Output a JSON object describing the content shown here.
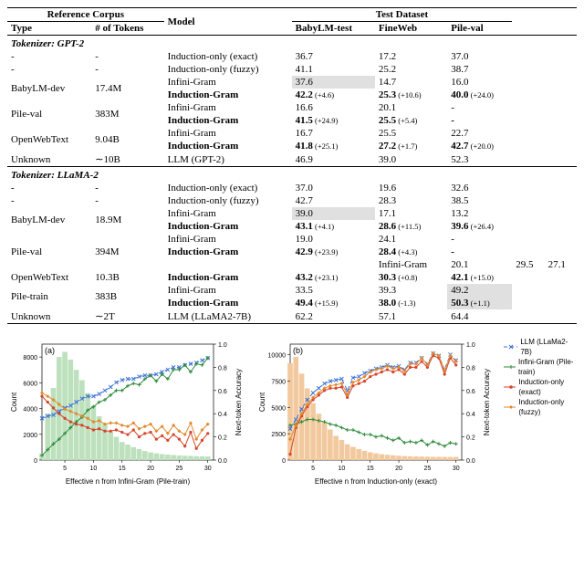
{
  "table": {
    "header": {
      "ref_corpus": "Reference Corpus",
      "type": "Type",
      "tokens": "# of Tokens",
      "model": "Model",
      "test_dataset": "Test Dataset",
      "babylm": "BabyLM-test",
      "fineweb": "FineWeb",
      "pile": "Pile-val"
    },
    "section_gpt2": "Tokenizer: GPT-2",
    "section_llama": "Tokenizer: LLaMA-2",
    "gpt2_rows": [
      {
        "type": "-",
        "tokens": "-",
        "model": "Induction-only (exact)",
        "babylm": "36.7",
        "fineweb": "17.2",
        "pile": "37.0",
        "bold": false
      },
      {
        "type": "-",
        "tokens": "-",
        "model": "Induction-only (fuzzy)",
        "babylm": "41.1",
        "fineweb": "25.2",
        "pile": "38.7",
        "bold": false
      },
      {
        "type": "BabyLM-dev",
        "tokens": "17.4M",
        "model": "Infini-Gram",
        "babylm": "37.6",
        "babylm_hl": true,
        "fineweb": "14.7",
        "pile": "16.0",
        "bold": false,
        "span": 2
      },
      {
        "model": "Induction-Gram",
        "babylm": "42.2",
        "babylm_d": "(+4.6)",
        "fineweb": "25.3",
        "fineweb_d": "(+10.6)",
        "pile": "40.0",
        "pile_d": "(+24.0)",
        "bold": true
      },
      {
        "type": "Pile-val",
        "tokens": "383M",
        "model": "Infini-Gram",
        "babylm": "16.6",
        "fineweb": "20.1",
        "pile": "-",
        "bold": false,
        "span": 2
      },
      {
        "model": "Induction-Gram",
        "babylm": "41.5",
        "babylm_d": "(+24.9)",
        "fineweb": "25.5",
        "fineweb_d": "(+5.4)",
        "pile": "-",
        "bold": true
      },
      {
        "type": "OpenWebText",
        "tokens": "9.04B",
        "model": "Infini-Gram",
        "babylm": "16.7",
        "fineweb": "25.5",
        "pile": "22.7",
        "bold": false,
        "span": 2
      },
      {
        "model": "Induction-Gram",
        "babylm": "41.8",
        "babylm_d": "(+25.1)",
        "fineweb": "27.2",
        "fineweb_d": "(+1.7)",
        "pile": "42.7",
        "pile_d": "(+20.0)",
        "bold": true
      },
      {
        "type": "Unknown",
        "tokens": "∼10B",
        "model": "LLM (GPT-2)",
        "babylm": "46.9",
        "fineweb": "39.0",
        "pile": "52.3",
        "bold": false
      }
    ],
    "llama_rows": [
      {
        "type": "-",
        "tokens": "-",
        "model": "Induction-only (exact)",
        "babylm": "37.0",
        "fineweb": "19.6",
        "pile": "32.6",
        "bold": false
      },
      {
        "type": "-",
        "tokens": "-",
        "model": "Induction-only (fuzzy)",
        "babylm": "42.7",
        "fineweb": "28.3",
        "pile": "38.5",
        "bold": false
      },
      {
        "type": "BabyLM-dev",
        "tokens": "18.9M",
        "model": "Infini-Gram",
        "babylm": "39.0",
        "babylm_hl": true,
        "fineweb": "17.1",
        "pile": "13.2",
        "bold": false,
        "span": 2
      },
      {
        "model": "Induction-Gram",
        "babylm": "43.1",
        "babylm_d": "(+4.1)",
        "fineweb": "28.6",
        "fineweb_d": "(+11.5)",
        "pile": "39.6",
        "pile_d": "(+26.4)",
        "bold": true
      },
      {
        "type": "Pile-val",
        "tokens": "394M",
        "model": "Infini-Gram",
        "babylm": "19.0",
        "fineweb": "24.1",
        "pile": "-",
        "bold": false,
        "span": 3
      },
      {
        "model": "Induction-Gram",
        "babylm": "42.9",
        "babylm_d": "(+23.9)",
        "fineweb": "28.4",
        "fineweb_d": "(+4.3)",
        "pile": "-",
        "bold": true
      },
      {
        "model": "Infini-Gram",
        "type_blank": true,
        "babylm": "20.1",
        "fineweb": "29.5",
        "pile": "27.1",
        "bold": false
      },
      {
        "type": "OpenWebText",
        "tokens": "10.3B",
        "model": "Induction-Gram",
        "babylm": "43.2",
        "babylm_d": "(+23.1)",
        "fineweb": "30.3",
        "fineweb_d": "(+0.8)",
        "pile": "42.1",
        "pile_d": "(+15.0)",
        "bold": true
      },
      {
        "type": "Pile-train",
        "tokens": "383B",
        "model": "Infini-Gram",
        "babylm": "33.5",
        "fineweb": "39.3",
        "pile": "49.2",
        "pile_hl": true,
        "bold": false,
        "span": 2
      },
      {
        "model": "Induction-Gram",
        "babylm": "49.4",
        "babylm_d": "(+15.9)",
        "fineweb": "38.0",
        "fineweb_d": "(-1.3)",
        "pile": "50.3",
        "pile_d": "(+1.1)",
        "pile_hl": true,
        "bold": true
      },
      {
        "type": "Unknown",
        "tokens": "∼2T",
        "model": "LLM (LLaMA2-7B)",
        "babylm": "62.2",
        "fineweb": "57.1",
        "pile": "64.4",
        "bold": false
      }
    ]
  },
  "charts": {
    "xlabel_a": "Effective n from Infini-Gram (Pile-train)",
    "xlabel_b": "Effective n from Induction-only (exact)",
    "ylabel_count": "Count",
    "ylabel_acc": "Next-token Accuracy",
    "panel_a": "(a)",
    "panel_b": "(b)",
    "xlim": [
      1,
      31
    ],
    "ylim_acc": [
      0.0,
      1.0
    ],
    "ytick_acc": [
      0.0,
      0.2,
      0.4,
      0.6,
      0.8,
      1.0
    ],
    "xtick": [
      0,
      5,
      10,
      15,
      20,
      25,
      30
    ],
    "a": {
      "ylim_count": [
        0,
        9000
      ],
      "ytick_count": [
        0,
        2000,
        4000,
        6000,
        8000
      ],
      "hist_color": "#bde0bd",
      "hist": [
        500,
        3600,
        5600,
        8000,
        8400,
        7800,
        7000,
        6200,
        5200,
        4200,
        3400,
        2800,
        2200,
        1800,
        1400,
        1200,
        1000,
        850,
        700,
        600,
        520,
        460,
        420,
        390,
        360,
        340,
        320,
        300,
        290,
        280
      ],
      "series": {
        "llm": {
          "color": "#3b6fd6",
          "marker": "x",
          "dash": "4 3",
          "y": [
            0.36,
            0.38,
            0.39,
            0.42,
            0.45,
            0.47,
            0.5,
            0.53,
            0.55,
            0.55,
            0.57,
            0.6,
            0.63,
            0.67,
            0.69,
            0.7,
            0.7,
            0.72,
            0.73,
            0.73,
            0.74,
            0.76,
            0.78,
            0.8,
            0.8,
            0.82,
            0.83,
            0.84,
            0.86,
            0.88
          ]
        },
        "infini": {
          "color": "#2e8b3a",
          "marker": "+",
          "dash": "",
          "y": [
            0.04,
            0.09,
            0.14,
            0.18,
            0.23,
            0.28,
            0.33,
            0.37,
            0.43,
            0.46,
            0.5,
            0.52,
            0.56,
            0.6,
            0.6,
            0.64,
            0.66,
            0.65,
            0.7,
            0.73,
            0.68,
            0.74,
            0.7,
            0.78,
            0.78,
            0.82,
            0.76,
            0.83,
            0.82,
            0.88
          ]
        },
        "ind_ex": {
          "color": "#d6442a",
          "marker": "o",
          "dash": "",
          "y": [
            0.55,
            0.5,
            0.45,
            0.4,
            0.36,
            0.33,
            0.31,
            0.3,
            0.28,
            0.26,
            0.27,
            0.25,
            0.25,
            0.26,
            0.24,
            0.22,
            0.26,
            0.2,
            0.23,
            0.24,
            0.18,
            0.21,
            0.17,
            0.22,
            0.18,
            0.12,
            0.24,
            0.1,
            0.17,
            0.23
          ]
        },
        "ind_fz": {
          "color": "#e08a2d",
          "marker": "d",
          "dash": "",
          "y": [
            0.58,
            0.55,
            0.52,
            0.48,
            0.44,
            0.42,
            0.4,
            0.38,
            0.36,
            0.33,
            0.34,
            0.31,
            0.32,
            0.32,
            0.3,
            0.29,
            0.32,
            0.27,
            0.29,
            0.31,
            0.25,
            0.29,
            0.23,
            0.3,
            0.25,
            0.22,
            0.32,
            0.18,
            0.26,
            0.31
          ]
        }
      }
    },
    "b": {
      "ylim_count": [
        0,
        11000
      ],
      "ytick_count": [
        0,
        2500,
        5000,
        7500,
        10000
      ],
      "hist_color": "#f2c99e",
      "hist": [
        9200,
        9800,
        8200,
        6800,
        5400,
        4400,
        3600,
        2900,
        2300,
        1900,
        1500,
        1250,
        1050,
        880,
        740,
        640,
        560,
        500,
        450,
        410,
        380,
        360,
        340,
        330,
        320,
        310,
        305,
        300,
        298,
        295
      ],
      "series": {
        "llm": {
          "color": "#3b6fd6",
          "marker": "x",
          "dash": "4 3",
          "y": [
            0.27,
            0.35,
            0.44,
            0.52,
            0.58,
            0.62,
            0.66,
            0.68,
            0.69,
            0.7,
            0.6,
            0.71,
            0.72,
            0.75,
            0.77,
            0.79,
            0.8,
            0.82,
            0.8,
            0.81,
            0.78,
            0.84,
            0.84,
            0.88,
            0.83,
            0.92,
            0.9,
            0.78,
            0.91,
            0.86
          ]
        },
        "infini": {
          "color": "#2e8b3a",
          "marker": "+",
          "dash": "",
          "y": [
            0.3,
            0.31,
            0.33,
            0.35,
            0.35,
            0.34,
            0.33,
            0.31,
            0.3,
            0.28,
            0.26,
            0.26,
            0.24,
            0.22,
            0.22,
            0.2,
            0.21,
            0.19,
            0.17,
            0.19,
            0.15,
            0.16,
            0.15,
            0.17,
            0.13,
            0.16,
            0.14,
            0.12,
            0.15,
            0.14
          ]
        },
        "ind_ex": {
          "color": "#d6442a",
          "marker": "o",
          "dash": "",
          "y": [
            0.05,
            0.28,
            0.38,
            0.46,
            0.52,
            0.56,
            0.6,
            0.62,
            0.62,
            0.63,
            0.54,
            0.64,
            0.66,
            0.68,
            0.72,
            0.74,
            0.76,
            0.78,
            0.76,
            0.78,
            0.74,
            0.8,
            0.8,
            0.85,
            0.8,
            0.9,
            0.88,
            0.74,
            0.88,
            0.82
          ]
        },
        "ind_fz": {
          "color": "#e08a2d",
          "marker": "d",
          "dash": "",
          "y": [
            0.18,
            0.3,
            0.4,
            0.48,
            0.54,
            0.58,
            0.62,
            0.64,
            0.65,
            0.66,
            0.57,
            0.67,
            0.69,
            0.72,
            0.76,
            0.78,
            0.79,
            0.81,
            0.79,
            0.8,
            0.77,
            0.83,
            0.83,
            0.88,
            0.82,
            0.92,
            0.9,
            0.77,
            0.9,
            0.85
          ]
        }
      }
    },
    "legend": {
      "llm": "LLM (LLaMa2-7B)",
      "infini": "Infini-Gram (Pile-train)",
      "ind_ex": "Induction-only (exact)",
      "ind_fz": "Induction-only (fuzzy)"
    }
  }
}
